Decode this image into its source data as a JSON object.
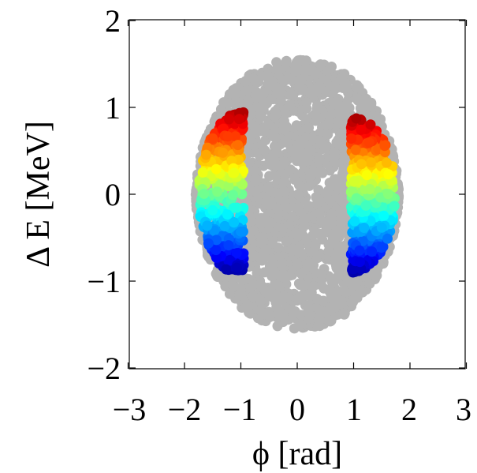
{
  "chart_data": {
    "type": "scatter",
    "title": "",
    "xlabel": "ϕ [rad]",
    "ylabel": "Δ E [MeV]",
    "xlim": [
      -3.2,
      3.2
    ],
    "ylim": [
      -2.0,
      2.0
    ],
    "xticks": [
      -3,
      -2,
      -1,
      0,
      1,
      2,
      3
    ],
    "yticks": [
      -2,
      -1,
      0,
      1,
      2
    ],
    "xtick_labels": [
      "−3",
      "−2",
      "−1",
      "0",
      "1",
      "2",
      "3"
    ],
    "ytick_labels": [
      "−2",
      "−1",
      "0",
      "1",
      "2"
    ],
    "grid": false,
    "legend": "none",
    "colormap": "jet",
    "background_distribution": {
      "shape": "filled separatrix (bucket)",
      "color": "#b3b3b3",
      "phi_extent": [
        -1.8,
        1.8
      ],
      "deltaE_extent": [
        -1.55,
        1.55
      ]
    },
    "highlighted_series": [
      {
        "region": "left band",
        "phi_range": [
          -1.75,
          -0.95
        ],
        "deltaE_range": [
          -0.88,
          0.95
        ],
        "color_by": "deltaE"
      },
      {
        "region": "right band",
        "phi_range": [
          0.95,
          1.75
        ],
        "deltaE_range": [
          -0.9,
          0.88
        ],
        "color_by": "deltaE"
      }
    ]
  }
}
